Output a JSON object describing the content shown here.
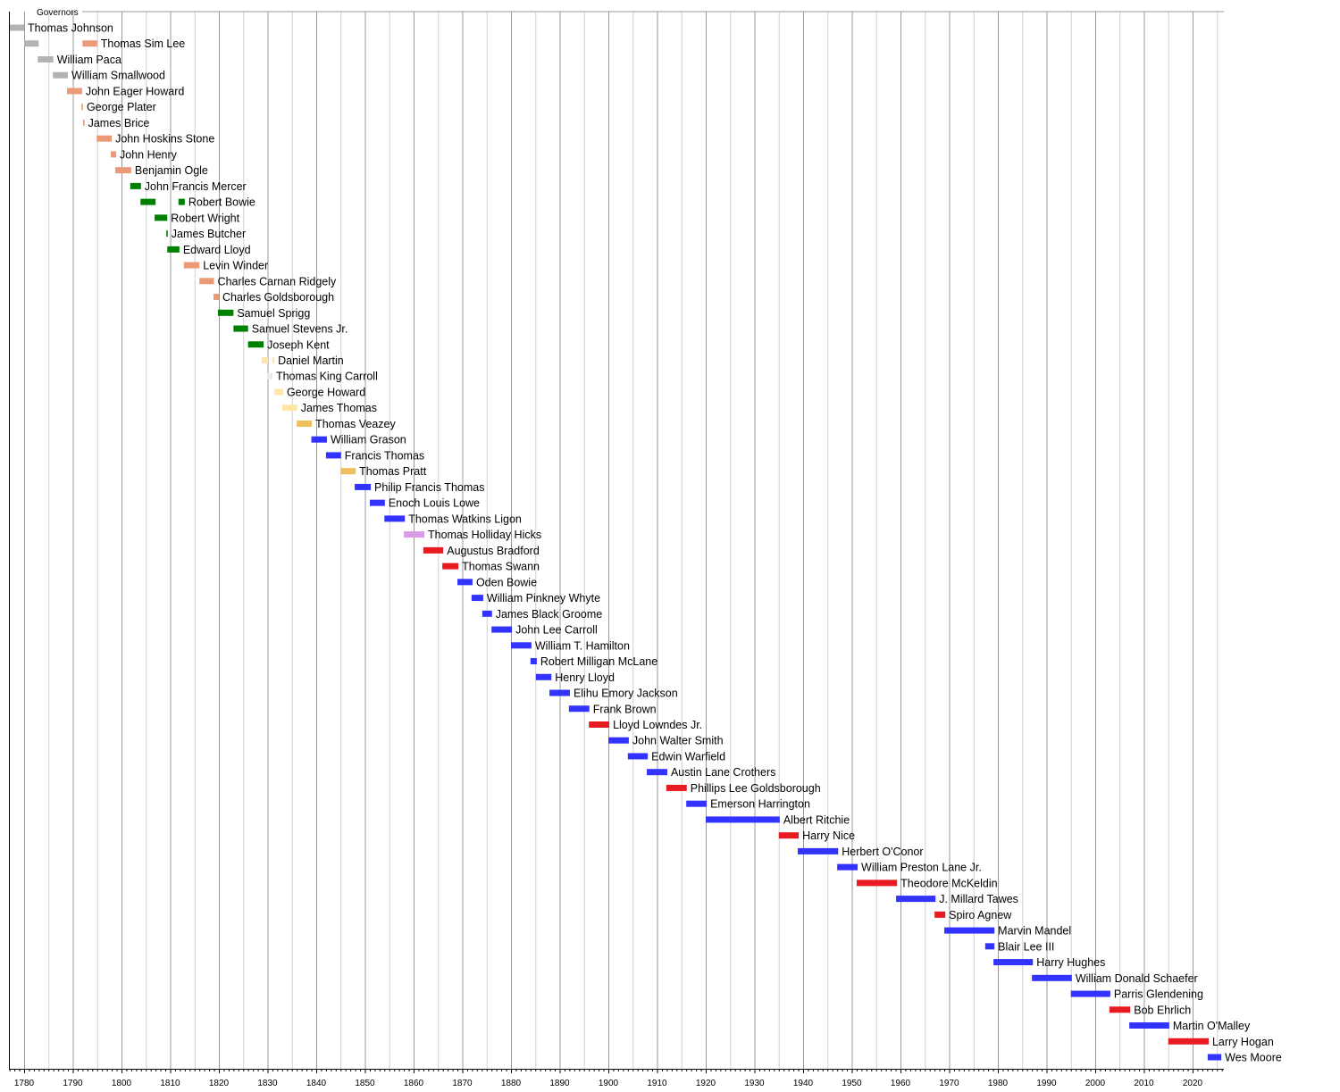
{
  "chart_data": {
    "type": "timeline",
    "title": "Governors",
    "xlim": [
      1777,
      2026.4
    ],
    "major_tick_step": 10,
    "minor_grid_step": 5,
    "tick_every": 1,
    "grid": true,
    "x_tick_labels": [
      "1780",
      "1790",
      "1800",
      "1810",
      "1820",
      "1830",
      "1840",
      "1850",
      "1860",
      "1870",
      "1880",
      "1890",
      "1900",
      "1910",
      "1920",
      "1930",
      "1940",
      "1950",
      "1960",
      "1970",
      "1980",
      "1990",
      "2000",
      "2010",
      "2020"
    ],
    "party_colors": {
      "none": "#b3b3b3",
      "federalist": "#ea9a76",
      "democratic-republican": "#008000",
      "national-republican": "#fde6a8",
      "jacksonian": "#e6ebf2",
      "whig": "#ecc05a",
      "democratic": "#3333ff",
      "american": "#d99ae6",
      "republican": "#e81b23"
    },
    "governors": [
      {
        "name": "Thomas Johnson",
        "terms": [
          [
            1777,
            1780,
            "none"
          ]
        ]
      },
      {
        "name": "Thomas Sim Lee",
        "terms": [
          [
            1780,
            1783,
            "none"
          ],
          [
            1792,
            1795,
            "federalist"
          ]
        ]
      },
      {
        "name": "William Paca",
        "terms": [
          [
            1782.8,
            1786,
            "none"
          ]
        ]
      },
      {
        "name": "William Smallwood",
        "terms": [
          [
            1785.9,
            1789,
            "none"
          ]
        ]
      },
      {
        "name": "John Eager Howard",
        "terms": [
          [
            1788.8,
            1791.9,
            "federalist"
          ]
        ]
      },
      {
        "name": "George Plater",
        "terms": [
          [
            1791.8,
            1792.1,
            "federalist"
          ]
        ]
      },
      {
        "name": "James Brice",
        "terms": [
          [
            1792.1,
            1792.4,
            "federalist"
          ]
        ]
      },
      {
        "name": "John Hoskins Stone",
        "terms": [
          [
            1794.9,
            1798,
            "federalist"
          ]
        ]
      },
      {
        "name": "John Henry",
        "terms": [
          [
            1797.8,
            1798.9,
            "federalist"
          ]
        ]
      },
      {
        "name": "Benjamin Ogle",
        "terms": [
          [
            1798.7,
            1802,
            "federalist"
          ]
        ]
      },
      {
        "name": "John Francis Mercer",
        "terms": [
          [
            1801.8,
            1804,
            "democratic-republican"
          ]
        ]
      },
      {
        "name": "Robert Bowie",
        "terms": [
          [
            1803.9,
            1807,
            "democratic-republican"
          ],
          [
            1811.7,
            1813,
            "democratic-republican"
          ]
        ]
      },
      {
        "name": "Robert Wright",
        "terms": [
          [
            1806.8,
            1809.4,
            "democratic-republican"
          ]
        ]
      },
      {
        "name": "James Butcher",
        "terms": [
          [
            1809.2,
            1809.5,
            "democratic-republican"
          ]
        ]
      },
      {
        "name": "Edward Lloyd",
        "terms": [
          [
            1809.4,
            1811.9,
            "democratic-republican"
          ]
        ]
      },
      {
        "name": "Levin Winder",
        "terms": [
          [
            1812.8,
            1816,
            "federalist"
          ]
        ]
      },
      {
        "name": "Charles Carnan Ridgely",
        "terms": [
          [
            1816,
            1819,
            "federalist"
          ]
        ]
      },
      {
        "name": "Charles Goldsborough",
        "terms": [
          [
            1818.9,
            1820,
            "federalist"
          ]
        ]
      },
      {
        "name": "Samuel Sprigg",
        "terms": [
          [
            1819.8,
            1823,
            "democratic-republican"
          ]
        ]
      },
      {
        "name": "Samuel Stevens Jr.",
        "terms": [
          [
            1823,
            1826,
            "democratic-republican"
          ]
        ]
      },
      {
        "name": "Joseph Kent",
        "terms": [
          [
            1826,
            1829.2,
            "democratic-republican"
          ]
        ]
      },
      {
        "name": "Daniel Martin",
        "terms": [
          [
            1828.8,
            1830.1,
            "national-republican"
          ],
          [
            1831,
            1831.4,
            "national-republican"
          ]
        ]
      },
      {
        "name": "Thomas King Carroll",
        "terms": [
          [
            1829.9,
            1831,
            "jacksonian"
          ]
        ]
      },
      {
        "name": "George Howard",
        "terms": [
          [
            1831.4,
            1833.2,
            "national-republican"
          ]
        ]
      },
      {
        "name": "James Thomas",
        "terms": [
          [
            1833,
            1836.1,
            "national-republican"
          ]
        ]
      },
      {
        "name": "Thomas Veazey",
        "terms": [
          [
            1836,
            1839.1,
            "whig"
          ]
        ]
      },
      {
        "name": "William Grason",
        "terms": [
          [
            1839,
            1842.2,
            "democratic"
          ]
        ]
      },
      {
        "name": "Francis Thomas",
        "terms": [
          [
            1842,
            1845.1,
            "democratic"
          ]
        ]
      },
      {
        "name": "Thomas Pratt",
        "terms": [
          [
            1845,
            1848.1,
            "whig"
          ]
        ]
      },
      {
        "name": "Philip Francis Thomas",
        "terms": [
          [
            1847.9,
            1851.2,
            "democratic"
          ]
        ]
      },
      {
        "name": "Enoch Louis Lowe",
        "terms": [
          [
            1851,
            1854.1,
            "democratic"
          ]
        ]
      },
      {
        "name": "Thomas Watkins Ligon",
        "terms": [
          [
            1854,
            1858.2,
            "democratic"
          ]
        ]
      },
      {
        "name": "Thomas Holliday Hicks",
        "terms": [
          [
            1858,
            1862.2,
            "american"
          ]
        ]
      },
      {
        "name": "Augustus Bradford",
        "terms": [
          [
            1862,
            1866.1,
            "republican"
          ]
        ]
      },
      {
        "name": "Thomas Swann",
        "terms": [
          [
            1865.9,
            1869.2,
            "republican"
          ]
        ]
      },
      {
        "name": "Oden Bowie",
        "terms": [
          [
            1869,
            1872.1,
            "democratic"
          ]
        ]
      },
      {
        "name": "William Pinkney Whyte",
        "terms": [
          [
            1871.9,
            1874.3,
            "democratic"
          ]
        ]
      },
      {
        "name": "James Black Groome",
        "terms": [
          [
            1874.1,
            1876.1,
            "democratic"
          ]
        ]
      },
      {
        "name": "John Lee Carroll",
        "terms": [
          [
            1876,
            1880.2,
            "democratic"
          ]
        ]
      },
      {
        "name": "William T. Hamilton",
        "terms": [
          [
            1880,
            1884.2,
            "democratic"
          ]
        ]
      },
      {
        "name": "Robert Milligan McLane",
        "terms": [
          [
            1884,
            1885.3,
            "democratic"
          ]
        ]
      },
      {
        "name": "Henry Lloyd",
        "terms": [
          [
            1885.1,
            1888.3,
            "democratic"
          ]
        ]
      },
      {
        "name": "Elihu Emory Jackson",
        "terms": [
          [
            1887.9,
            1892.1,
            "democratic"
          ]
        ]
      },
      {
        "name": "Frank Brown",
        "terms": [
          [
            1891.9,
            1896.1,
            "democratic"
          ]
        ]
      },
      {
        "name": "Lloyd Lowndes Jr.",
        "terms": [
          [
            1896,
            1900.2,
            "republican"
          ]
        ]
      },
      {
        "name": "John Walter Smith",
        "terms": [
          [
            1900,
            1904.2,
            "democratic"
          ]
        ]
      },
      {
        "name": "Edwin Warfield",
        "terms": [
          [
            1904,
            1908.1,
            "democratic"
          ]
        ]
      },
      {
        "name": "Austin Lane Crothers",
        "terms": [
          [
            1907.9,
            1912.1,
            "democratic"
          ]
        ]
      },
      {
        "name": "Phillips Lee Goldsborough",
        "terms": [
          [
            1911.9,
            1916.1,
            "republican"
          ]
        ]
      },
      {
        "name": "Emerson Harrington",
        "terms": [
          [
            1916,
            1920.2,
            "democratic"
          ]
        ]
      },
      {
        "name": "Albert Ritchie",
        "terms": [
          [
            1920,
            1935.2,
            "democratic"
          ]
        ]
      },
      {
        "name": "Harry Nice",
        "terms": [
          [
            1935,
            1939.1,
            "republican"
          ]
        ]
      },
      {
        "name": "Herbert O'Conor",
        "terms": [
          [
            1938.9,
            1947.2,
            "democratic"
          ]
        ]
      },
      {
        "name": "William Preston Lane Jr.",
        "terms": [
          [
            1947,
            1951.2,
            "democratic"
          ]
        ]
      },
      {
        "name": "Theodore McKeldin",
        "terms": [
          [
            1951,
            1959.3,
            "republican"
          ]
        ]
      },
      {
        "name": "J. Millard Tawes",
        "terms": [
          [
            1959.1,
            1967.2,
            "democratic"
          ]
        ]
      },
      {
        "name": "Spiro Agnew",
        "terms": [
          [
            1967,
            1969.2,
            "republican"
          ]
        ]
      },
      {
        "name": "Marvin Mandel",
        "terms": [
          [
            1969,
            1979.3,
            "democratic"
          ]
        ]
      },
      {
        "name": "Blair Lee III",
        "terms": [
          [
            1977.4,
            1979.3,
            "democratic"
          ]
        ]
      },
      {
        "name": "Harry Hughes",
        "terms": [
          [
            1979.1,
            1987.2,
            "democratic"
          ]
        ]
      },
      {
        "name": "William Donald Schaefer",
        "terms": [
          [
            1987,
            1995.2,
            "democratic"
          ]
        ]
      },
      {
        "name": "Parris Glendening",
        "terms": [
          [
            1995,
            2003.1,
            "democratic"
          ]
        ]
      },
      {
        "name": "Bob Ehrlich",
        "terms": [
          [
            2002.9,
            2007.2,
            "republican"
          ]
        ]
      },
      {
        "name": "Martin O'Malley",
        "terms": [
          [
            2007,
            2015.2,
            "democratic"
          ]
        ]
      },
      {
        "name": "Larry Hogan",
        "terms": [
          [
            2015,
            2023.3,
            "republican"
          ]
        ]
      },
      {
        "name": "Wes Moore",
        "terms": [
          [
            2023.1,
            2025.9,
            "democratic"
          ]
        ]
      }
    ]
  }
}
